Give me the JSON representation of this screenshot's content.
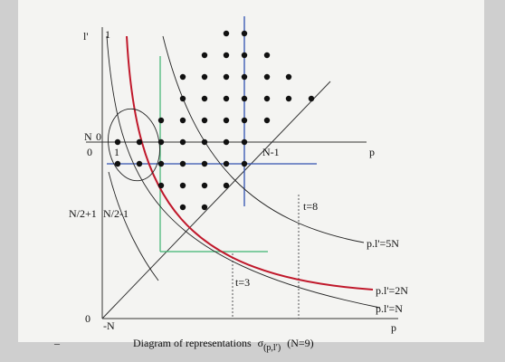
{
  "axes": {
    "l_axis_label": "l'",
    "l_top": "1",
    "n_mark": "N",
    "zero_upper": "0",
    "zero_left": "0",
    "one_mark": "1",
    "n_minus_1": "N-1",
    "p_upper": "p",
    "half_plus": "N/2+1",
    "half_minus": "N/2-1",
    "zero_lower": "0",
    "minus_n": "-N",
    "p_lower": "p"
  },
  "annotations": {
    "t8": "t=8",
    "t3": "t=3",
    "curve_5n": "p.l'=5N",
    "curve_2n": "p.l'=2N",
    "curve_n": "p.l'=N"
  },
  "caption": {
    "dash": "–",
    "text": "Diagram of representations",
    "symbol": "σ",
    "subscript": "(p,l′)",
    "note": "(N=9)"
  }
}
